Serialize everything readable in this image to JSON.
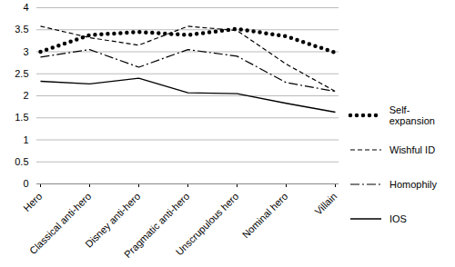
{
  "chart_data": {
    "type": "line",
    "categories": [
      "Hero",
      "Classical anti-hero",
      "Disney anti-hero",
      "Pragmatic anti-hero",
      "Unscrupulous hero",
      "Nominal hero",
      "Villain"
    ],
    "series": [
      {
        "name": "Self-expansion",
        "color": "#000000",
        "line_style": "dotted",
        "values": [
          3.0,
          3.38,
          3.45,
          3.38,
          3.52,
          3.35,
          2.98
        ]
      },
      {
        "name": "Wishful ID",
        "color": "#000000",
        "line_style": "dashed",
        "values": [
          3.58,
          3.32,
          3.15,
          3.58,
          3.48,
          2.72,
          2.1
        ]
      },
      {
        "name": "Homophily",
        "color": "#000000",
        "line_style": "dashdot",
        "values": [
          2.88,
          3.05,
          2.65,
          3.05,
          2.9,
          2.3,
          2.1
        ]
      },
      {
        "name": "IOS",
        "color": "#000000",
        "line_style": "solid",
        "values": [
          2.33,
          2.27,
          2.4,
          2.07,
          2.05,
          1.83,
          1.63
        ]
      }
    ],
    "ylim": [
      0,
      4
    ],
    "yticks": [
      0,
      0.5,
      1,
      1.5,
      2,
      2.5,
      3,
      3.5,
      4
    ],
    "grid": true,
    "legend": "right"
  }
}
